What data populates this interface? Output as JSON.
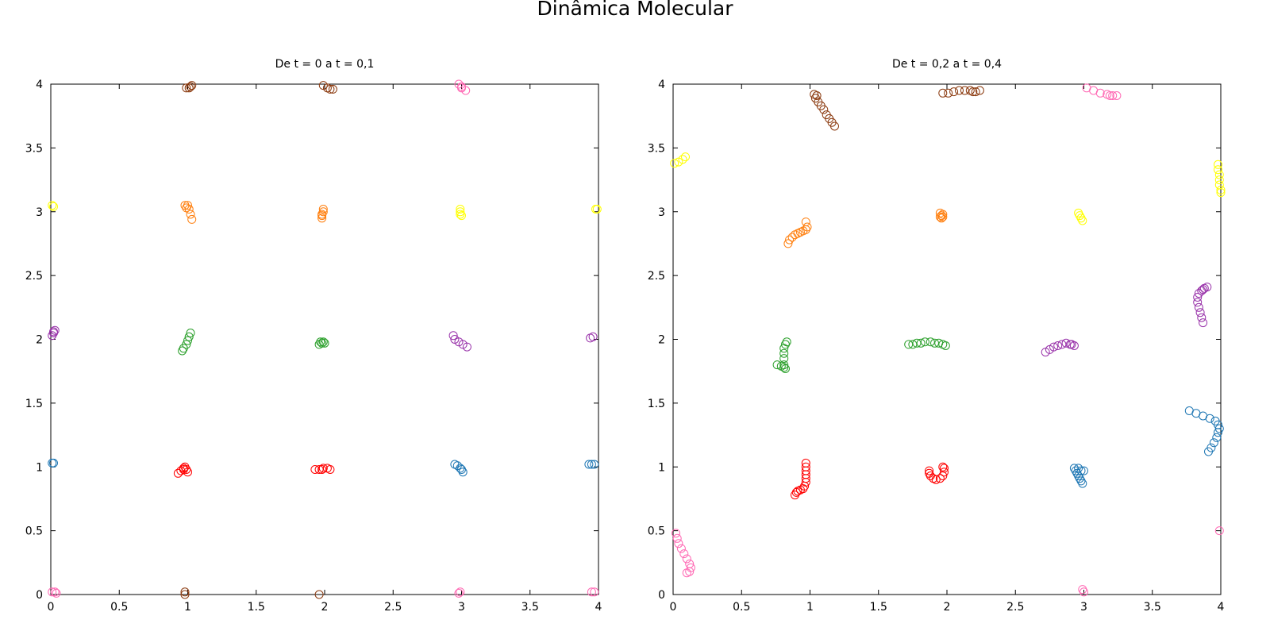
{
  "figure": {
    "title": "Dinâmica Molecular"
  },
  "chart_data": [
    {
      "type": "scatter",
      "title": "De t = 0 a t = 0,1",
      "xlabel": "",
      "ylabel": "",
      "xlim": [
        0,
        4
      ],
      "ylim": [
        0,
        4
      ],
      "xticks": [
        "0",
        "0.5",
        "1",
        "1.5",
        "2",
        "2.5",
        "3",
        "3.5",
        "4"
      ],
      "yticks": [
        "0",
        "0.5",
        "1",
        "1.5",
        "2",
        "2.5",
        "3",
        "3.5",
        "4"
      ],
      "grid": false,
      "marker": "open-circle",
      "series": [
        {
          "color": "#ff0000",
          "points": [
            [
              0.93,
              0.95
            ],
            [
              0.95,
              0.97
            ],
            [
              0.97,
              0.99
            ],
            [
              0.98,
              1.0
            ],
            [
              0.99,
              0.98
            ],
            [
              1.0,
              0.96
            ],
            [
              0.97,
              0.98
            ],
            [
              1.93,
              0.98
            ],
            [
              1.96,
              0.98
            ],
            [
              1.99,
              0.99
            ],
            [
              2.02,
              0.99
            ],
            [
              2.04,
              0.98
            ],
            [
              1.98,
              0.98
            ]
          ]
        },
        {
          "color": "#1f77b4",
          "points": [
            [
              0.01,
              1.03
            ],
            [
              0.02,
              1.03
            ],
            [
              2.95,
              1.02
            ],
            [
              2.97,
              1.01
            ],
            [
              2.99,
              0.99
            ],
            [
              3.0,
              0.98
            ],
            [
              3.01,
              0.96
            ],
            [
              3.93,
              1.02
            ],
            [
              3.95,
              1.02
            ],
            [
              3.97,
              1.02
            ]
          ]
        },
        {
          "color": "#2ca02c",
          "points": [
            [
              0.96,
              1.91
            ],
            [
              0.97,
              1.93
            ],
            [
              0.99,
              1.96
            ],
            [
              1.0,
              1.99
            ],
            [
              1.01,
              2.02
            ],
            [
              1.02,
              2.05
            ],
            [
              1.96,
              1.96
            ],
            [
              1.98,
              1.97
            ],
            [
              1.99,
              1.98
            ],
            [
              2.0,
              1.97
            ],
            [
              1.97,
              1.98
            ]
          ]
        },
        {
          "color": "#9933aa",
          "points": [
            [
              0.01,
              2.03
            ],
            [
              0.02,
              2.05
            ],
            [
              0.03,
              2.07
            ],
            [
              0.02,
              2.06
            ],
            [
              2.94,
              2.03
            ],
            [
              2.95,
              2.0
            ],
            [
              2.98,
              1.98
            ],
            [
              3.01,
              1.96
            ],
            [
              3.04,
              1.94
            ],
            [
              3.94,
              2.01
            ],
            [
              3.96,
              2.02
            ]
          ]
        },
        {
          "color": "#ff7f0e",
          "points": [
            [
              0.98,
              3.05
            ],
            [
              0.99,
              3.03
            ],
            [
              1.0,
              3.05
            ],
            [
              1.01,
              3.02
            ],
            [
              1.02,
              2.98
            ],
            [
              1.03,
              2.94
            ],
            [
              1.98,
              2.95
            ],
            [
              1.98,
              2.98
            ],
            [
              1.99,
              3.0
            ],
            [
              1.99,
              3.02
            ],
            [
              1.98,
              2.97
            ]
          ]
        },
        {
          "color": "#ffff00",
          "points": [
            [
              0.01,
              3.05
            ],
            [
              0.02,
              3.04
            ],
            [
              2.99,
              3.0
            ],
            [
              2.99,
              2.98
            ],
            [
              3.0,
              2.97
            ],
            [
              2.99,
              3.02
            ],
            [
              3.98,
              3.02
            ],
            [
              3.99,
              3.02
            ]
          ]
        },
        {
          "color": "#8b3a0f",
          "points": [
            [
              0.99,
              3.97
            ],
            [
              1.01,
              3.97
            ],
            [
              1.02,
              3.98
            ],
            [
              1.03,
              3.99
            ],
            [
              1.99,
              3.99
            ],
            [
              2.02,
              3.97
            ],
            [
              2.04,
              3.96
            ],
            [
              2.06,
              3.96
            ],
            [
              0.98,
              0.02
            ],
            [
              0.98,
              0.0
            ],
            [
              1.96,
              0.0
            ]
          ]
        },
        {
          "color": "#ff69b4",
          "points": [
            [
              2.98,
              4.0
            ],
            [
              3.0,
              3.97
            ],
            [
              3.03,
              3.95
            ],
            [
              3.0,
              3.98
            ],
            [
              0.01,
              0.02
            ],
            [
              0.03,
              0.02
            ],
            [
              0.04,
              0.01
            ],
            [
              2.98,
              0.01
            ],
            [
              2.99,
              0.02
            ],
            [
              3.95,
              0.02
            ],
            [
              3.97,
              0.02
            ]
          ]
        }
      ]
    },
    {
      "type": "scatter",
      "title": "De t = 0,2 a t = 0,4",
      "xlabel": "",
      "ylabel": "",
      "xlim": [
        0,
        4
      ],
      "ylim": [
        0,
        4
      ],
      "xticks": [
        "0",
        "0.5",
        "1",
        "1.5",
        "2",
        "2.5",
        "3",
        "3.5",
        "4"
      ],
      "yticks": [
        "0",
        "0.5",
        "1",
        "1.5",
        "2",
        "2.5",
        "3",
        "3.5",
        "4"
      ],
      "grid": false,
      "marker": "open-circle",
      "series": [
        {
          "color": "#ff0000",
          "points": [
            [
              0.89,
              0.78
            ],
            [
              0.9,
              0.8
            ],
            [
              0.91,
              0.81
            ],
            [
              0.93,
              0.82
            ],
            [
              0.95,
              0.83
            ],
            [
              0.96,
              0.85
            ],
            [
              0.97,
              0.88
            ],
            [
              0.97,
              0.91
            ],
            [
              0.97,
              0.94
            ],
            [
              0.97,
              0.97
            ],
            [
              0.97,
              1.0
            ],
            [
              0.97,
              1.03
            ],
            [
              1.87,
              0.97
            ],
            [
              1.87,
              0.95
            ],
            [
              1.88,
              0.93
            ],
            [
              1.9,
              0.91
            ],
            [
              1.92,
              0.9
            ],
            [
              1.95,
              0.91
            ],
            [
              1.97,
              0.93
            ],
            [
              1.98,
              0.96
            ],
            [
              1.98,
              0.99
            ],
            [
              1.97,
              1.0
            ]
          ]
        },
        {
          "color": "#1f77b4",
          "points": [
            [
              2.93,
              0.99
            ],
            [
              2.94,
              0.97
            ],
            [
              2.95,
              0.95
            ],
            [
              2.96,
              0.93
            ],
            [
              2.97,
              0.91
            ],
            [
              2.98,
              0.89
            ],
            [
              2.99,
              0.87
            ],
            [
              2.98,
              0.97
            ],
            [
              2.96,
              0.99
            ],
            [
              3.0,
              0.97
            ],
            [
              3.77,
              1.44
            ],
            [
              3.82,
              1.42
            ],
            [
              3.87,
              1.4
            ],
            [
              3.92,
              1.38
            ],
            [
              3.96,
              1.36
            ],
            [
              3.98,
              1.33
            ],
            [
              3.99,
              1.3
            ],
            [
              3.98,
              1.27
            ],
            [
              3.97,
              1.23
            ],
            [
              3.95,
              1.19
            ],
            [
              3.93,
              1.15
            ],
            [
              3.91,
              1.12
            ]
          ]
        },
        {
          "color": "#2ca02c",
          "points": [
            [
              0.76,
              1.8
            ],
            [
              0.79,
              1.79
            ],
            [
              0.81,
              1.78
            ],
            [
              0.82,
              1.77
            ],
            [
              0.81,
              1.8
            ],
            [
              0.81,
              1.85
            ],
            [
              0.81,
              1.89
            ],
            [
              0.81,
              1.93
            ],
            [
              0.82,
              1.96
            ],
            [
              0.83,
              1.98
            ],
            [
              1.72,
              1.96
            ],
            [
              1.75,
              1.96
            ],
            [
              1.78,
              1.97
            ],
            [
              1.81,
              1.97
            ],
            [
              1.84,
              1.98
            ],
            [
              1.88,
              1.98
            ],
            [
              1.91,
              1.97
            ],
            [
              1.94,
              1.97
            ],
            [
              1.97,
              1.96
            ],
            [
              1.99,
              1.95
            ]
          ]
        },
        {
          "color": "#9933aa",
          "points": [
            [
              2.72,
              1.9
            ],
            [
              2.75,
              1.92
            ],
            [
              2.78,
              1.94
            ],
            [
              2.81,
              1.95
            ],
            [
              2.84,
              1.96
            ],
            [
              2.87,
              1.97
            ],
            [
              2.9,
              1.96
            ],
            [
              2.93,
              1.95
            ],
            [
              2.91,
              1.96
            ],
            [
              3.87,
              2.13
            ],
            [
              3.86,
              2.17
            ],
            [
              3.85,
              2.21
            ],
            [
              3.84,
              2.25
            ],
            [
              3.83,
              2.29
            ],
            [
              3.83,
              2.33
            ],
            [
              3.84,
              2.36
            ],
            [
              3.86,
              2.38
            ],
            [
              3.88,
              2.4
            ],
            [
              3.9,
              2.41
            ],
            [
              3.87,
              2.39
            ]
          ]
        },
        {
          "color": "#ff7f0e",
          "points": [
            [
              0.84,
              2.75
            ],
            [
              0.85,
              2.78
            ],
            [
              0.87,
              2.8
            ],
            [
              0.89,
              2.82
            ],
            [
              0.91,
              2.83
            ],
            [
              0.93,
              2.84
            ],
            [
              0.95,
              2.85
            ],
            [
              0.97,
              2.86
            ],
            [
              0.98,
              2.88
            ],
            [
              0.97,
              2.92
            ],
            [
              1.95,
              2.96
            ],
            [
              1.96,
              2.97
            ],
            [
              1.97,
              2.98
            ],
            [
              1.95,
              2.99
            ],
            [
              1.97,
              2.96
            ],
            [
              1.96,
              2.95
            ]
          ]
        },
        {
          "color": "#ffff00",
          "points": [
            [
              0.01,
              3.38
            ],
            [
              0.04,
              3.39
            ],
            [
              0.07,
              3.41
            ],
            [
              0.09,
              3.43
            ],
            [
              2.96,
              2.99
            ],
            [
              2.97,
              2.97
            ],
            [
              2.98,
              2.95
            ],
            [
              2.99,
              2.93
            ],
            [
              3.98,
              3.37
            ],
            [
              3.98,
              3.33
            ],
            [
              3.99,
              3.29
            ],
            [
              3.99,
              3.25
            ],
            [
              3.99,
              3.21
            ],
            [
              4.0,
              3.17
            ],
            [
              4.0,
              3.15
            ]
          ]
        },
        {
          "color": "#8b3a0f",
          "points": [
            [
              1.03,
              3.92
            ],
            [
              1.04,
              3.89
            ],
            [
              1.06,
              3.86
            ],
            [
              1.08,
              3.83
            ],
            [
              1.1,
              3.8
            ],
            [
              1.12,
              3.76
            ],
            [
              1.14,
              3.73
            ],
            [
              1.16,
              3.7
            ],
            [
              1.18,
              3.67
            ],
            [
              1.05,
              3.91
            ],
            [
              1.97,
              3.93
            ],
            [
              2.01,
              3.93
            ],
            [
              2.05,
              3.94
            ],
            [
              2.09,
              3.95
            ],
            [
              2.13,
              3.95
            ],
            [
              2.17,
              3.95
            ],
            [
              2.21,
              3.94
            ],
            [
              2.24,
              3.95
            ],
            [
              2.19,
              3.94
            ]
          ]
        },
        {
          "color": "#ff69b4",
          "points": [
            [
              3.02,
              3.97
            ],
            [
              3.07,
              3.95
            ],
            [
              3.12,
              3.93
            ],
            [
              3.17,
              3.92
            ],
            [
              3.21,
              3.91
            ],
            [
              3.24,
              3.91
            ],
            [
              3.19,
              3.91
            ],
            [
              0.02,
              0.48
            ],
            [
              0.03,
              0.44
            ],
            [
              0.04,
              0.4
            ],
            [
              0.06,
              0.36
            ],
            [
              0.08,
              0.32
            ],
            [
              0.1,
              0.28
            ],
            [
              0.12,
              0.24
            ],
            [
              0.13,
              0.21
            ],
            [
              0.12,
              0.18
            ],
            [
              0.1,
              0.17
            ],
            [
              2.99,
              0.04
            ],
            [
              3.0,
              0.02
            ],
            [
              3.99,
              0.5
            ]
          ]
        }
      ]
    }
  ]
}
